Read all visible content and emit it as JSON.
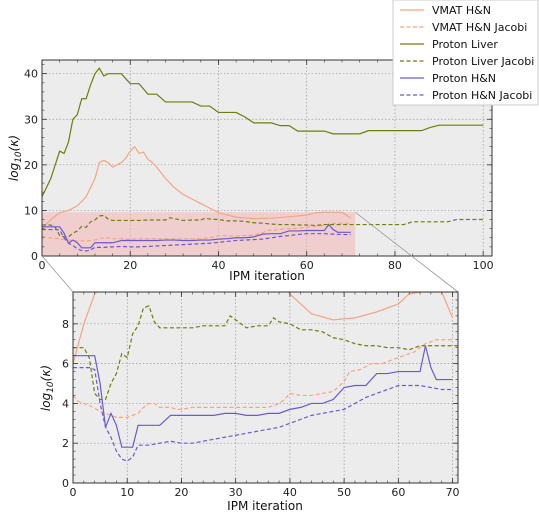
{
  "chart_data": [
    {
      "type": "line",
      "xlabel": "IPM iteration",
      "ylabel": "log10(κ)",
      "xlim": [
        0,
        102
      ],
      "ylim": [
        0,
        43
      ],
      "xticks": [
        "0",
        "20",
        "40",
        "60",
        "80",
        "100"
      ],
      "yticks": [
        "0",
        "10",
        "20",
        "30",
        "40"
      ],
      "grid": true,
      "highlight": {
        "x": [
          0,
          71
        ],
        "y": [
          0,
          9.6
        ]
      },
      "series": [
        {
          "name": "VMAT H&N",
          "color": "#f4a582",
          "dash": "solid",
          "x": [
            0,
            2,
            4,
            6,
            8,
            10,
            12,
            13,
            14,
            15,
            16,
            17,
            18,
            19,
            20,
            21,
            22,
            23,
            24,
            25,
            26,
            28,
            30,
            32,
            34,
            36,
            38,
            40,
            44,
            48,
            52,
            56,
            60,
            62,
            64,
            66,
            68,
            70
          ],
          "y": [
            6,
            8,
            9.5,
            10,
            11,
            13,
            17,
            20.5,
            21,
            20.5,
            19.5,
            20,
            20.5,
            21.5,
            23,
            24,
            22.5,
            22.8,
            21.2,
            20.5,
            19.5,
            17,
            15,
            13.5,
            12.5,
            11.5,
            10.5,
            9.5,
            8.5,
            8.2,
            8.3,
            8.6,
            9,
            9.5,
            9.6,
            9.6,
            9.6,
            8.3
          ]
        },
        {
          "name": "VMAT H&N Jacobi",
          "color": "#f4a582",
          "dash": "dashed",
          "x": [
            0,
            1,
            3,
            5,
            7,
            8,
            10,
            12,
            13,
            14,
            15,
            16,
            18,
            19,
            20,
            22,
            24,
            26,
            28,
            30,
            32,
            34,
            36,
            38,
            39,
            40,
            42,
            44,
            46,
            48,
            50,
            51,
            53,
            55,
            57,
            59,
            61,
            63,
            65,
            67,
            70
          ],
          "y": [
            4.4,
            4.1,
            3.9,
            3.6,
            3.4,
            3.3,
            3.3,
            3.5,
            3.8,
            4.0,
            4.0,
            3.8,
            3.8,
            3.7,
            3.7,
            3.8,
            3.8,
            3.8,
            3.8,
            3.8,
            3.8,
            3.8,
            3.8,
            4,
            4.2,
            4.5,
            4.4,
            4.4,
            4.5,
            4.6,
            5.1,
            5.6,
            5.7,
            6,
            6,
            6.2,
            6.4,
            6.6,
            7,
            7.2,
            7.2
          ]
        },
        {
          "name": "Proton Liver",
          "color": "#6b7f0a",
          "dash": "solid",
          "x": [
            0,
            1,
            2,
            3,
            4,
            5,
            6,
            7,
            8,
            9,
            10,
            11,
            12,
            13,
            14,
            15,
            16,
            17,
            18,
            20,
            22,
            24,
            26,
            28,
            30,
            32,
            34,
            36,
            38,
            40,
            42,
            44,
            46,
            48,
            50,
            52,
            54,
            56,
            58,
            60,
            62,
            64,
            66,
            68,
            70,
            72,
            74,
            76,
            78,
            80,
            82,
            84,
            86,
            88,
            90,
            92,
            94,
            96,
            98,
            100
          ],
          "y": [
            13,
            15,
            17,
            20,
            23,
            22.5,
            25,
            30,
            31,
            34.5,
            34.5,
            37.5,
            40,
            41.2,
            39.5,
            40,
            40,
            40,
            40,
            37.8,
            37.8,
            35.5,
            35.5,
            33.8,
            33.8,
            33.8,
            33.8,
            32.9,
            32.9,
            31.5,
            31.5,
            31.5,
            30.5,
            29.2,
            29.2,
            29.2,
            28.6,
            28.6,
            27.4,
            27.4,
            27.4,
            27.4,
            26.8,
            26.8,
            26.8,
            26.8,
            27.5,
            27.5,
            27.5,
            27.5,
            27.5,
            27.5,
            27.5,
            28.2,
            28.7,
            28.7,
            28.7,
            28.7,
            28.7,
            28.7
          ]
        },
        {
          "name": "Proton Liver Jacobi",
          "color": "#6b7f0a",
          "dash": "dashed",
          "x": [
            0,
            2,
            3,
            4,
            5,
            6,
            7,
            8,
            9,
            10,
            11,
            12,
            13,
            14,
            15,
            16,
            18,
            20,
            22,
            24,
            26,
            28,
            29,
            30,
            32,
            34,
            36,
            37,
            38,
            40,
            42,
            44,
            46,
            48,
            50,
            52,
            54,
            56,
            58,
            60,
            62,
            64,
            66,
            68,
            70,
            72,
            74,
            76,
            78,
            80,
            82,
            84,
            86,
            88,
            90,
            92,
            94,
            96,
            98,
            100
          ],
          "y": [
            6.8,
            6.8,
            6.3,
            4.5,
            4.2,
            4.2,
            5,
            5.5,
            6.5,
            6.3,
            7.5,
            7.9,
            8.8,
            8.9,
            8.1,
            7.8,
            7.8,
            7.8,
            7.8,
            7.9,
            7.9,
            7.9,
            8.4,
            8.2,
            7.8,
            7.9,
            7.9,
            8.3,
            8.1,
            8.0,
            7.7,
            7.7,
            7.6,
            7.3,
            7.2,
            7.0,
            6.9,
            6.9,
            6.8,
            6.8,
            6.7,
            6.9,
            6.9,
            6.9,
            6.9,
            6.9,
            6.9,
            6.9,
            6.9,
            6.9,
            6.9,
            7.5,
            7.5,
            7.5,
            7.5,
            7.5,
            8.0,
            8.0,
            8.0,
            8.0
          ]
        },
        {
          "name": "Proton H&N",
          "color": "#6a5acd",
          "dash": "solid",
          "x": [
            0,
            1,
            2,
            3,
            4,
            5,
            6,
            7,
            8,
            9,
            10,
            11,
            12,
            14,
            16,
            18,
            20,
            22,
            24,
            26,
            28,
            30,
            32,
            34,
            36,
            38,
            40,
            42,
            44,
            46,
            48,
            50,
            52,
            54,
            56,
            58,
            60,
            62,
            64,
            65,
            66,
            67,
            70
          ],
          "y": [
            6.4,
            6.4,
            6.4,
            6.4,
            6.4,
            5.0,
            2.8,
            3.5,
            2.9,
            1.8,
            1.8,
            1.8,
            2.9,
            2.9,
            2.9,
            3.4,
            3.4,
            3.4,
            3.4,
            3.4,
            3.5,
            3.5,
            3.4,
            3.4,
            3.5,
            3.5,
            3.7,
            3.8,
            4,
            4,
            4.2,
            4.8,
            4.9,
            4.9,
            5.5,
            5.5,
            5.6,
            5.6,
            5.6,
            6.9,
            5.8,
            5.2,
            5.2
          ]
        },
        {
          "name": "Proton H&N Jacobi",
          "color": "#6a5acd",
          "dash": "dashed",
          "x": [
            0,
            1,
            3,
            4,
            5,
            6,
            7,
            8,
            9,
            10,
            11,
            12,
            14,
            16,
            18,
            20,
            22,
            24,
            26,
            28,
            30,
            32,
            34,
            36,
            38,
            40,
            42,
            44,
            46,
            48,
            50,
            52,
            54,
            56,
            58,
            60,
            62,
            64,
            66,
            68,
            70
          ],
          "y": [
            5.8,
            5.8,
            5.8,
            5.7,
            4.0,
            2.8,
            2.3,
            1.6,
            1.2,
            1.1,
            1.3,
            1.9,
            1.9,
            2.0,
            2.1,
            2.0,
            2.0,
            2.1,
            2.2,
            2.3,
            2.4,
            2.5,
            2.6,
            2.7,
            2.8,
            3.0,
            3.2,
            3.4,
            3.5,
            3.6,
            3.7,
            4.0,
            4.3,
            4.5,
            4.7,
            4.9,
            4.9,
            4.9,
            4.8,
            4.7,
            4.7
          ]
        }
      ]
    },
    {
      "type": "line",
      "xlabel": "IPM iteration",
      "ylabel": "log10(κ)",
      "xlim": [
        0,
        71
      ],
      "ylim": [
        0,
        9.6
      ],
      "xticks": [
        "0",
        "10",
        "20",
        "30",
        "40",
        "50",
        "60",
        "70"
      ],
      "yticks": [
        "0",
        "2",
        "4",
        "6",
        "8"
      ],
      "grid": true
    }
  ],
  "legend": {
    "placement": "top-right",
    "entries": [
      "VMAT H&N",
      "VMAT H&N Jacobi",
      "Proton Liver",
      "Proton Liver Jacobi",
      "Proton H&N",
      "Proton H&N Jacobi"
    ]
  }
}
